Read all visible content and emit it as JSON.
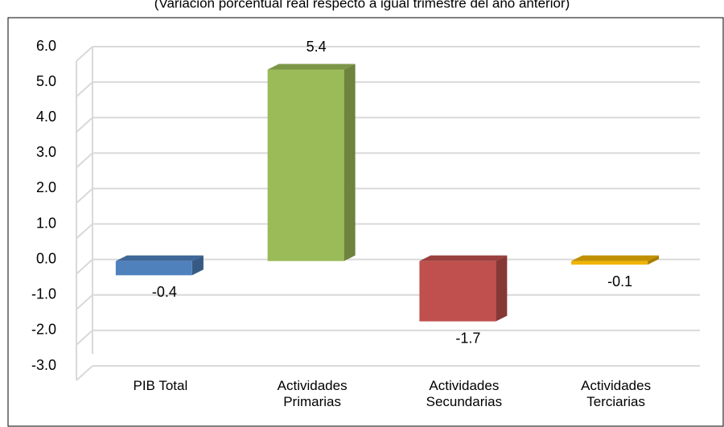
{
  "chart_data": {
    "type": "bar3d",
    "subtitle": "(Variación porcentual real respecto a igual trimestre del año anterior)",
    "categories": [
      "PIB Total",
      "Actividades Primarias",
      "Actividades Secundarias",
      "Actividades Terciarias"
    ],
    "values": [
      -0.4,
      5.4,
      -1.7,
      -0.1
    ],
    "colors": [
      "#4f81bd",
      "#9bbb59",
      "#c0504d",
      "#f0b400"
    ],
    "ylim": [
      -3,
      6
    ],
    "yticks": [
      {
        "value": -3,
        "label": "-3.0"
      },
      {
        "value": -2,
        "label": "-2.0"
      },
      {
        "value": -1,
        "label": "-1.0"
      },
      {
        "value": 0,
        "label": "0.0"
      },
      {
        "value": 1,
        "label": "1.0"
      },
      {
        "value": 2,
        "label": "2.0"
      },
      {
        "value": 3,
        "label": "3.0"
      },
      {
        "value": 4,
        "label": "4.0"
      },
      {
        "value": 5,
        "label": "5.0"
      },
      {
        "value": 6,
        "label": "6.0"
      }
    ],
    "grid": true
  }
}
